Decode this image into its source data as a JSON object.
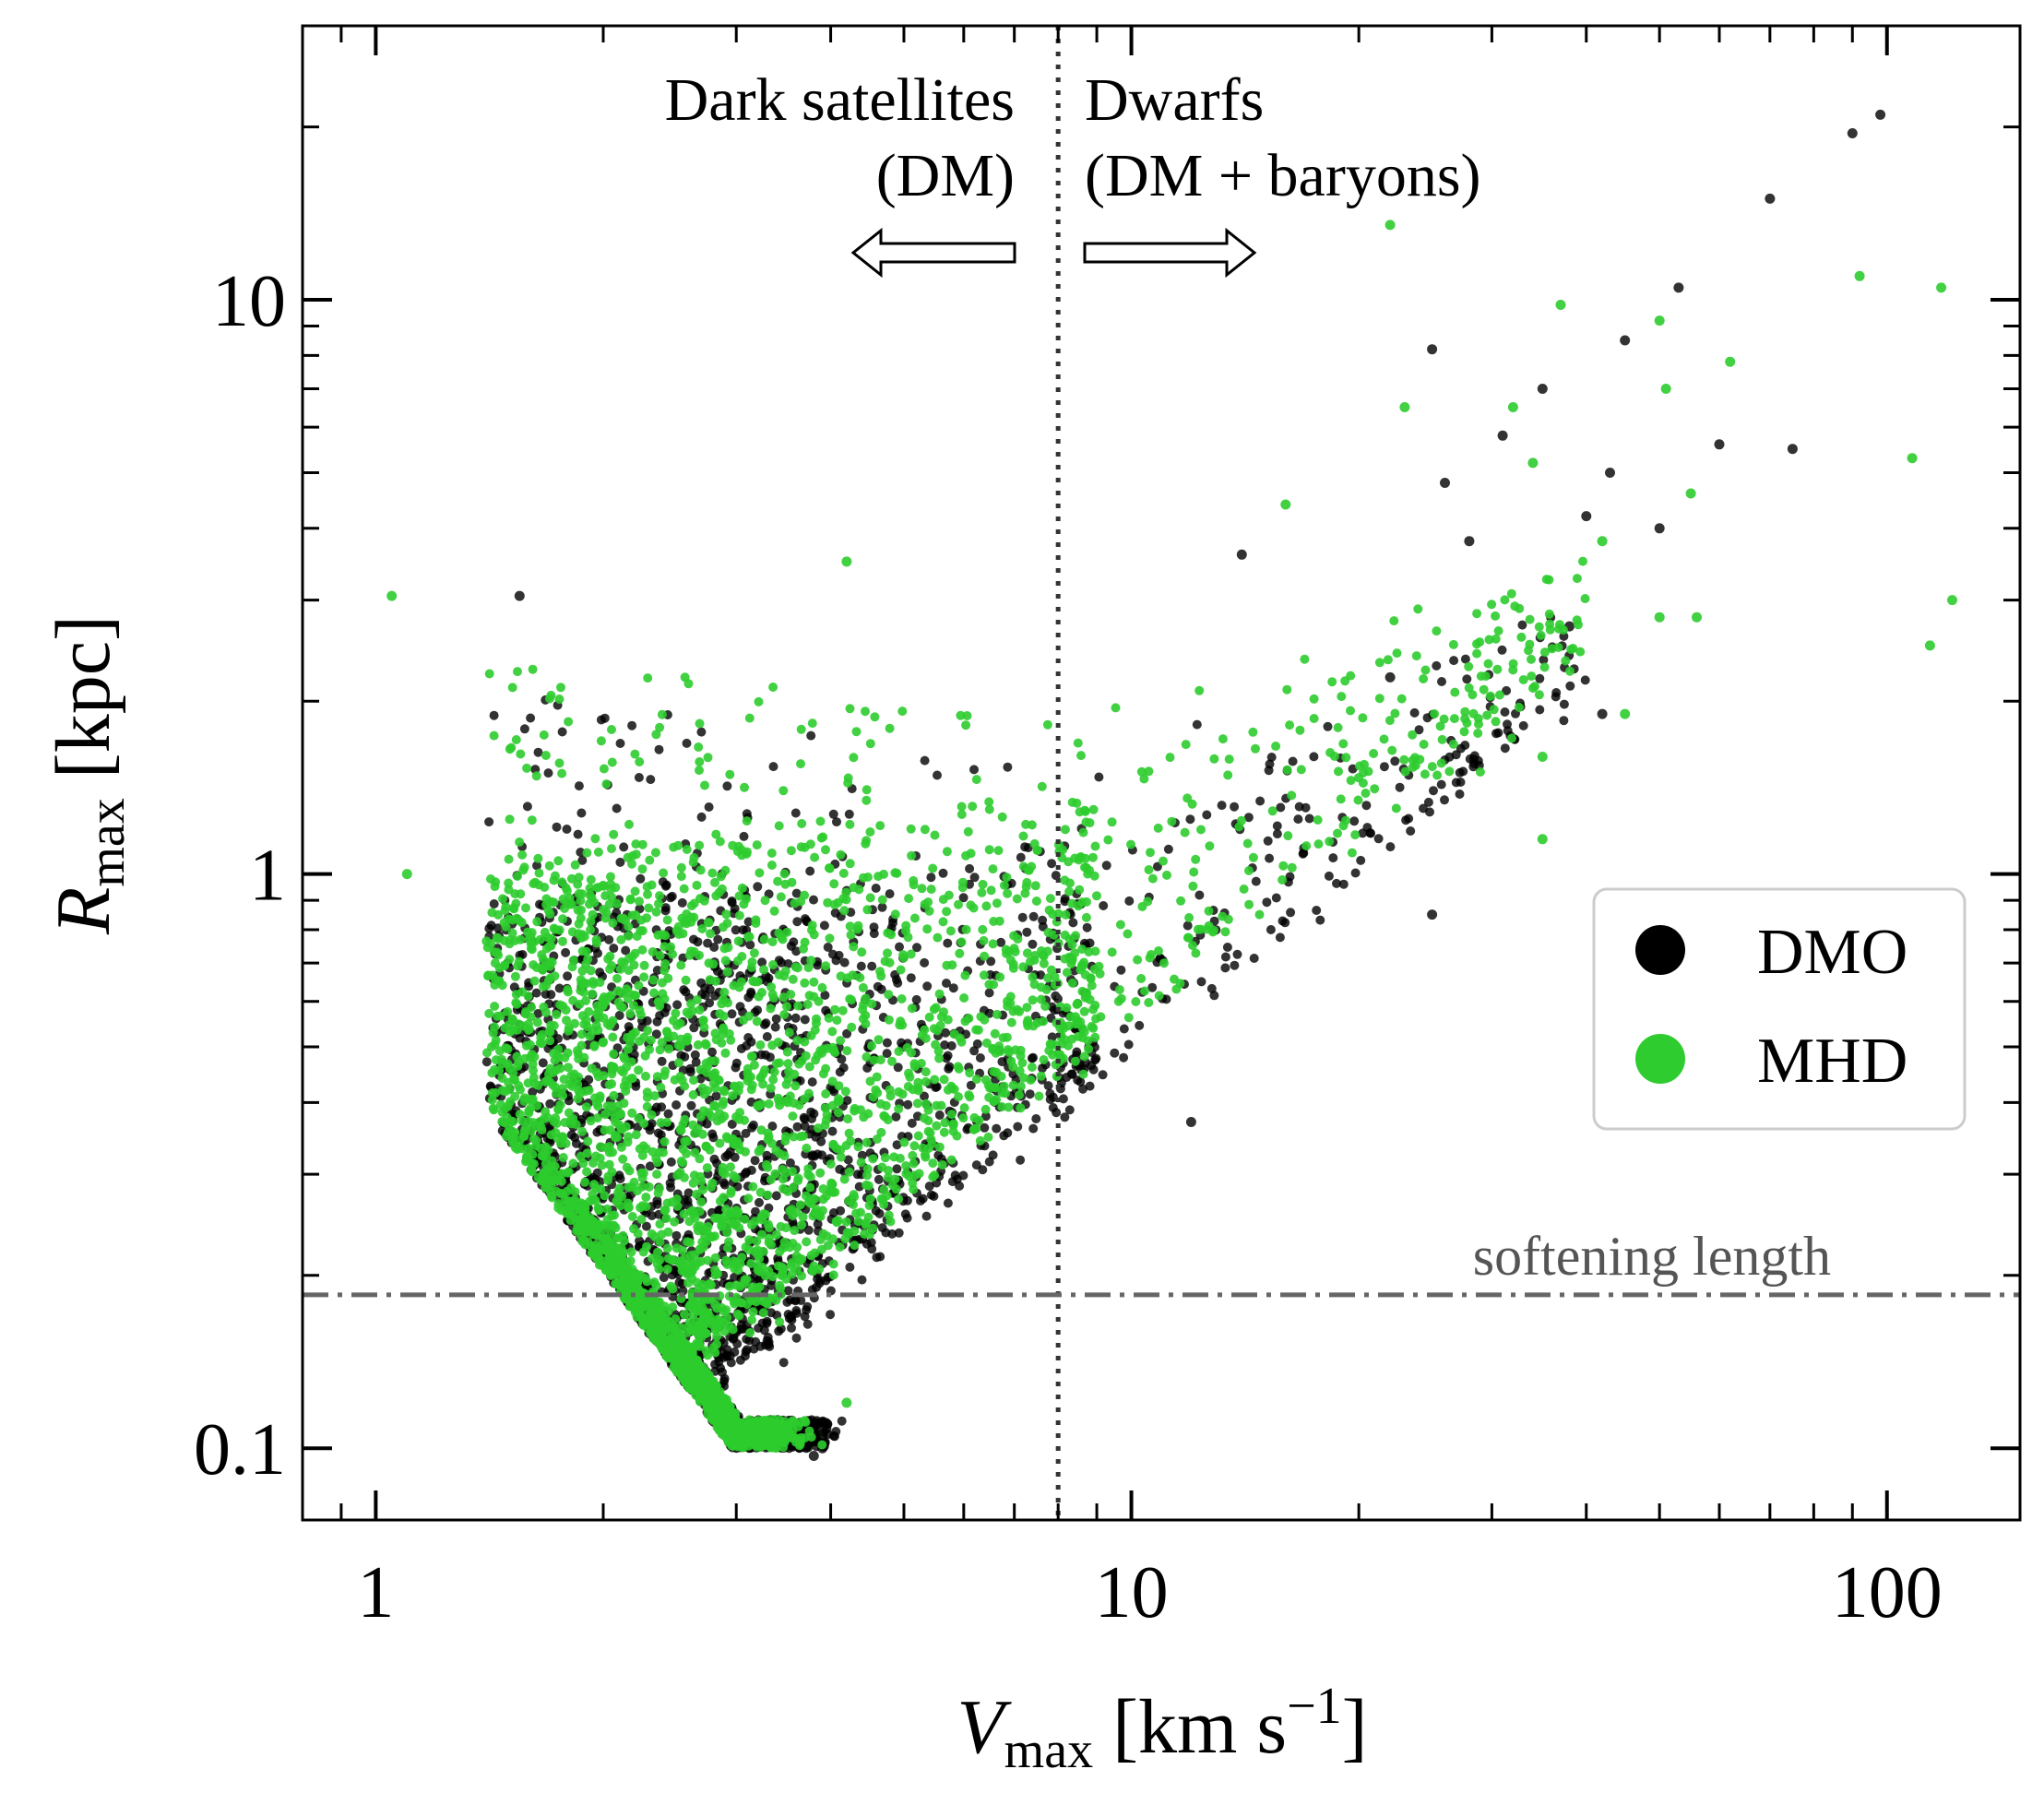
{
  "chart_data": {
    "type": "scatter",
    "xscale": "log",
    "yscale": "log",
    "xlim": [
      0.8,
      150
    ],
    "ylim": [
      0.075,
      30
    ],
    "xlabel": {
      "main": "V",
      "sub": "max",
      "unit": " [km s",
      "sup": "−1",
      "close": "]"
    },
    "ylabel": {
      "main": "R",
      "sub": "max",
      "unit": " [kpc]"
    },
    "x_ticks": [
      {
        "value": 1,
        "label": "1"
      },
      {
        "value": 10,
        "label": "10"
      },
      {
        "value": 100,
        "label": "100"
      }
    ],
    "y_ticks": [
      {
        "value": 0.1,
        "label": "0.1"
      },
      {
        "value": 1,
        "label": "1"
      },
      {
        "value": 10,
        "label": "10"
      }
    ],
    "vline": {
      "x": 8,
      "style": "dotted",
      "color": "#333333"
    },
    "hline": {
      "y": 0.185,
      "style": "dashdot",
      "color": "#666666",
      "label": "softening length"
    },
    "annotations": {
      "left_line1": "Dark satellites",
      "left_line2": "(DM)",
      "right_line1": "Dwarfs",
      "right_line2": "(DM + baryons)"
    },
    "series": [
      {
        "name": "DMO",
        "color": "#000000",
        "count": 2600,
        "seed": 7
      },
      {
        "name": "MHD",
        "color": "#2ecc2e",
        "count": 3400,
        "seed": 13
      }
    ],
    "population": {
      "ridge": "log10(R) ≈ 1.05*log10(V) − 1.35",
      "x_range": [
        1.05,
        120
      ],
      "r_range": [
        0.1,
        22
      ],
      "mhd_offset_dex": 0.07
    },
    "outliers": {
      "DMO": [
        [
          98,
          21
        ],
        [
          90,
          19.5
        ],
        [
          70,
          15
        ],
        [
          53,
          10.5
        ],
        [
          45,
          8.5
        ],
        [
          25,
          8.2
        ],
        [
          35,
          7
        ],
        [
          31,
          5.8
        ],
        [
          60,
          5.6
        ],
        [
          75,
          5.5
        ],
        [
          43,
          5
        ],
        [
          26,
          4.8
        ],
        [
          40,
          4.2
        ],
        [
          50,
          4
        ],
        [
          28,
          3.8
        ],
        [
          14,
          3.6
        ],
        [
          38,
          2.7
        ],
        [
          22,
          2.2
        ],
        [
          42,
          1.9
        ],
        [
          25,
          0.85
        ],
        [
          12,
          0.37
        ],
        [
          3.9,
          0.1
        ],
        [
          3.8,
          0.097
        ],
        [
          1.55,
          3.05
        ]
      ],
      "MHD": [
        [
          22,
          13.5
        ],
        [
          92,
          11
        ],
        [
          118,
          10.5
        ],
        [
          37,
          9.8
        ],
        [
          50,
          9.2
        ],
        [
          62,
          7.8
        ],
        [
          23,
          6.5
        ],
        [
          32,
          6.5
        ],
        [
          51,
          7
        ],
        [
          108,
          5.3
        ],
        [
          34,
          5.2
        ],
        [
          55,
          4.6
        ],
        [
          16,
          4.4
        ],
        [
          42,
          3.8
        ],
        [
          4.2,
          3.5
        ],
        [
          1.05,
          3.05
        ],
        [
          122,
          3
        ],
        [
          50,
          2.8
        ],
        [
          56,
          2.8
        ],
        [
          114,
          2.5
        ],
        [
          45,
          1.9
        ],
        [
          35,
          1.6
        ],
        [
          35,
          1.15
        ],
        [
          1.1,
          1.0
        ],
        [
          4.2,
          0.12
        ]
      ]
    },
    "legend": {
      "position": "right",
      "entries": [
        {
          "label": "DMO",
          "color": "#000000"
        },
        {
          "label": "MHD",
          "color": "#2ecc2e"
        }
      ]
    }
  }
}
